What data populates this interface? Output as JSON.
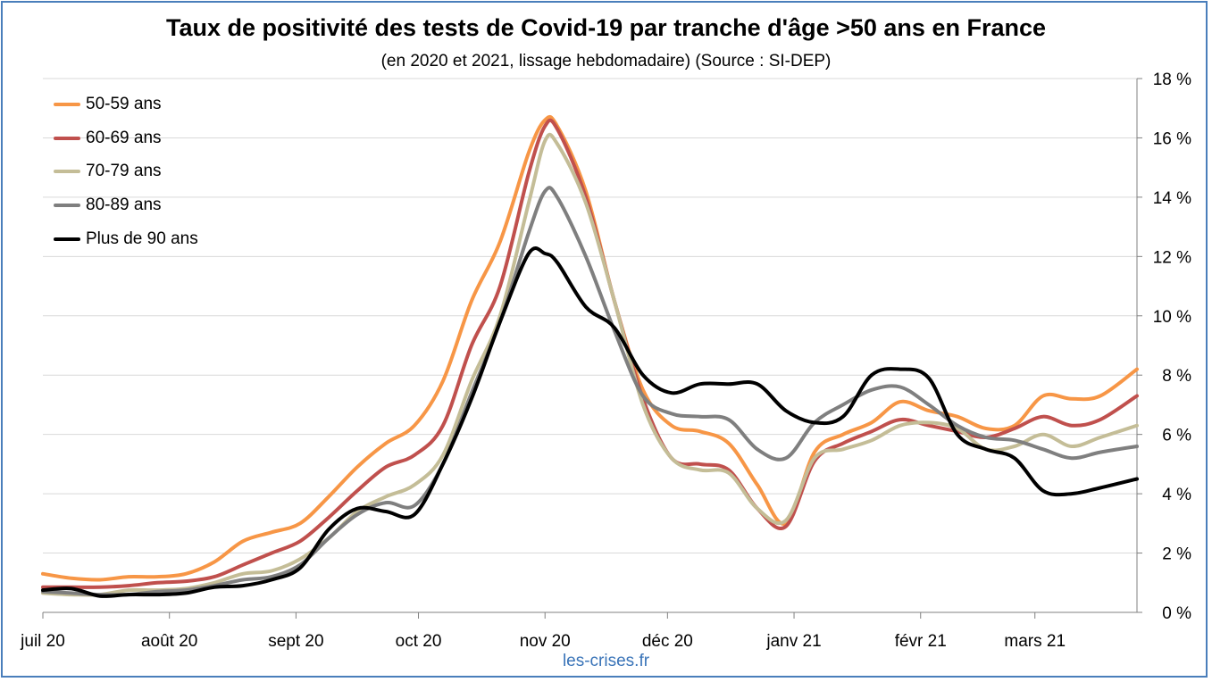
{
  "chart_data": {
    "type": "line",
    "title": "Taux de positivité des tests de Covid-19 par tranche d'âge >50 ans en France",
    "subtitle": "(en 2020 et 2021, lissage hebdomadaire) (Source : SI-DEP)",
    "source_credit": "les-crises.fr",
    "x_tick_labels": [
      "juil 20",
      "août 20",
      "sept 20",
      "oct 20",
      "nov 20",
      "déc 20",
      "janv 21",
      "févr 21",
      "mars 21"
    ],
    "x_range": [
      "2020-07-01",
      "2021-03-26"
    ],
    "y_range": [
      0,
      18
    ],
    "y_tick_labels": [
      "0 %",
      "2 %",
      "4 %",
      "6 %",
      "8 %",
      "10 %",
      "12 %",
      "14 %",
      "16 %",
      "18 %"
    ],
    "y_axis_position": "right",
    "grid": "horizontal",
    "legend_position": "top-left",
    "series": [
      {
        "name": "50-59 ans",
        "color": "#f79646",
        "x": [
          "2020-07-01",
          "2020-07-08",
          "2020-07-15",
          "2020-07-22",
          "2020-07-29",
          "2020-08-05",
          "2020-08-12",
          "2020-08-19",
          "2020-08-26",
          "2020-09-02",
          "2020-09-09",
          "2020-09-16",
          "2020-09-23",
          "2020-09-30",
          "2020-10-07",
          "2020-10-14",
          "2020-10-21",
          "2020-10-28",
          "2020-11-01",
          "2020-11-04",
          "2020-11-11",
          "2020-11-18",
          "2020-11-25",
          "2020-12-02",
          "2020-12-09",
          "2020-12-16",
          "2020-12-23",
          "2020-12-30",
          "2021-01-06",
          "2021-01-13",
          "2021-01-20",
          "2021-01-27",
          "2021-02-03",
          "2021-02-10",
          "2021-02-17",
          "2021-02-24",
          "2021-03-03",
          "2021-03-10",
          "2021-03-17",
          "2021-03-26"
        ],
        "values": [
          1.3,
          1.15,
          1.1,
          1.2,
          1.2,
          1.3,
          1.7,
          2.4,
          2.7,
          3.0,
          3.9,
          4.9,
          5.7,
          6.3,
          7.8,
          10.5,
          12.5,
          15.5,
          16.6,
          16.4,
          14.2,
          10.5,
          7.5,
          6.3,
          6.1,
          5.7,
          4.3,
          3.0,
          5.4,
          6.0,
          6.4,
          7.1,
          6.8,
          6.6,
          6.2,
          6.3,
          7.3,
          7.2,
          7.3,
          8.2
        ]
      },
      {
        "name": "60-69 ans",
        "color": "#c0504d",
        "x": [
          "2020-07-01",
          "2020-07-08",
          "2020-07-15",
          "2020-07-22",
          "2020-07-29",
          "2020-08-05",
          "2020-08-12",
          "2020-08-19",
          "2020-08-26",
          "2020-09-02",
          "2020-09-09",
          "2020-09-16",
          "2020-09-23",
          "2020-09-30",
          "2020-10-07",
          "2020-10-14",
          "2020-10-21",
          "2020-10-28",
          "2020-11-01",
          "2020-11-04",
          "2020-11-11",
          "2020-11-18",
          "2020-11-25",
          "2020-12-02",
          "2020-12-09",
          "2020-12-16",
          "2020-12-23",
          "2020-12-30",
          "2021-01-06",
          "2021-01-13",
          "2021-01-20",
          "2021-01-27",
          "2021-02-03",
          "2021-02-10",
          "2021-02-17",
          "2021-02-24",
          "2021-03-03",
          "2021-03-10",
          "2021-03-17",
          "2021-03-26"
        ],
        "values": [
          0.85,
          0.85,
          0.85,
          0.9,
          1.0,
          1.05,
          1.2,
          1.6,
          2.0,
          2.4,
          3.2,
          4.1,
          4.9,
          5.3,
          6.3,
          9.0,
          11.0,
          14.8,
          16.4,
          16.3,
          14.0,
          10.5,
          7.2,
          5.2,
          5.0,
          4.8,
          3.5,
          2.9,
          5.1,
          5.7,
          6.1,
          6.5,
          6.3,
          6.1,
          5.9,
          6.2,
          6.6,
          6.3,
          6.5,
          7.3
        ]
      },
      {
        "name": "70-79 ans",
        "color": "#c4bd97",
        "x": [
          "2020-07-01",
          "2020-07-08",
          "2020-07-15",
          "2020-07-22",
          "2020-07-29",
          "2020-08-05",
          "2020-08-12",
          "2020-08-19",
          "2020-08-26",
          "2020-09-02",
          "2020-09-09",
          "2020-09-16",
          "2020-09-23",
          "2020-09-30",
          "2020-10-07",
          "2020-10-14",
          "2020-10-21",
          "2020-10-28",
          "2020-11-01",
          "2020-11-04",
          "2020-11-11",
          "2020-11-18",
          "2020-11-25",
          "2020-12-02",
          "2020-12-09",
          "2020-12-16",
          "2020-12-23",
          "2020-12-30",
          "2021-01-06",
          "2021-01-13",
          "2021-01-20",
          "2021-01-27",
          "2021-02-03",
          "2021-02-10",
          "2021-02-17",
          "2021-02-24",
          "2021-03-03",
          "2021-03-10",
          "2021-03-17",
          "2021-03-26"
        ],
        "values": [
          0.65,
          0.6,
          0.6,
          0.75,
          0.75,
          0.8,
          1.0,
          1.3,
          1.4,
          1.8,
          2.5,
          3.4,
          3.9,
          4.3,
          5.3,
          7.8,
          10.0,
          13.8,
          15.9,
          15.8,
          13.8,
          10.5,
          7.0,
          5.2,
          4.8,
          4.7,
          3.5,
          3.1,
          5.2,
          5.5,
          5.8,
          6.3,
          6.4,
          6.2,
          5.5,
          5.6,
          6.0,
          5.6,
          5.9,
          6.3
        ]
      },
      {
        "name": "80-89 ans",
        "color": "#7f7f7f",
        "x": [
          "2020-07-01",
          "2020-07-08",
          "2020-07-15",
          "2020-07-22",
          "2020-07-29",
          "2020-08-05",
          "2020-08-12",
          "2020-08-19",
          "2020-08-26",
          "2020-09-02",
          "2020-09-09",
          "2020-09-16",
          "2020-09-23",
          "2020-09-30",
          "2020-10-07",
          "2020-10-14",
          "2020-10-21",
          "2020-10-28",
          "2020-11-01",
          "2020-11-04",
          "2020-11-11",
          "2020-11-18",
          "2020-11-25",
          "2020-12-02",
          "2020-12-09",
          "2020-12-16",
          "2020-12-23",
          "2020-12-30",
          "2021-01-06",
          "2021-01-13",
          "2021-01-20",
          "2021-01-27",
          "2021-02-03",
          "2021-02-10",
          "2021-02-17",
          "2021-02-24",
          "2021-03-03",
          "2021-03-10",
          "2021-03-17",
          "2021-03-26"
        ],
        "values": [
          0.7,
          0.65,
          0.6,
          0.6,
          0.7,
          0.75,
          0.9,
          1.1,
          1.2,
          1.6,
          2.5,
          3.3,
          3.7,
          3.6,
          5.0,
          7.4,
          9.8,
          12.8,
          14.2,
          14.0,
          12.0,
          9.5,
          7.3,
          6.7,
          6.6,
          6.5,
          5.5,
          5.2,
          6.4,
          7.0,
          7.5,
          7.6,
          7.0,
          6.3,
          5.9,
          5.8,
          5.5,
          5.2,
          5.4,
          5.6
        ]
      },
      {
        "name": "Plus de 90 ans",
        "color": "#000000",
        "x": [
          "2020-07-01",
          "2020-07-08",
          "2020-07-15",
          "2020-07-22",
          "2020-07-29",
          "2020-08-05",
          "2020-08-12",
          "2020-08-19",
          "2020-08-26",
          "2020-09-02",
          "2020-09-09",
          "2020-09-16",
          "2020-09-23",
          "2020-09-30",
          "2020-10-07",
          "2020-10-14",
          "2020-10-21",
          "2020-10-28",
          "2020-11-01",
          "2020-11-04",
          "2020-11-11",
          "2020-11-18",
          "2020-11-25",
          "2020-12-02",
          "2020-12-09",
          "2020-12-16",
          "2020-12-23",
          "2020-12-30",
          "2021-01-06",
          "2021-01-13",
          "2021-01-20",
          "2021-01-27",
          "2021-02-03",
          "2021-02-10",
          "2021-02-17",
          "2021-02-24",
          "2021-03-03",
          "2021-03-10",
          "2021-03-17",
          "2021-03-26"
        ],
        "values": [
          0.75,
          0.8,
          0.55,
          0.6,
          0.6,
          0.65,
          0.85,
          0.9,
          1.1,
          1.5,
          2.8,
          3.5,
          3.4,
          3.3,
          5.0,
          7.2,
          9.8,
          12.1,
          12.1,
          11.8,
          10.3,
          9.6,
          8.0,
          7.4,
          7.7,
          7.7,
          7.7,
          6.8,
          6.4,
          6.6,
          8.0,
          8.2,
          7.9,
          6.0,
          5.5,
          5.2,
          4.1,
          4.0,
          4.2,
          4.5
        ]
      }
    ]
  }
}
